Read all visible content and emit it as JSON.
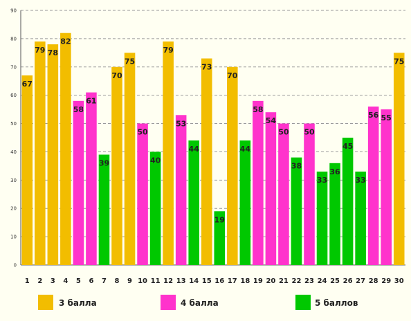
{
  "chart_data": {
    "type": "bar",
    "categories": [
      "1",
      "2",
      "3",
      "4",
      "5",
      "6",
      "7",
      "8",
      "9",
      "10",
      "11",
      "12",
      "13",
      "14",
      "15",
      "16",
      "17",
      "18",
      "19",
      "20",
      "21",
      "22",
      "23",
      "24",
      "25",
      "26",
      "27",
      "28",
      "29",
      "30"
    ],
    "values": [
      67,
      79,
      78,
      82,
      58,
      61,
      39,
      70,
      75,
      50,
      40,
      79,
      53,
      44,
      73,
      19,
      70,
      44,
      58,
      54,
      50,
      38,
      50,
      33,
      36,
      45,
      33,
      56,
      55,
      75
    ],
    "groups": [
      "3",
      "3",
      "3",
      "3",
      "4",
      "4",
      "5",
      "3",
      "3",
      "4",
      "5",
      "3",
      "4",
      "5",
      "3",
      "5",
      "3",
      "5",
      "4",
      "4",
      "4",
      "5",
      "4",
      "5",
      "5",
      "5",
      "5",
      "4",
      "4",
      "3"
    ],
    "ylim": [
      0,
      90
    ],
    "yticks": [
      0,
      10,
      20,
      30,
      40,
      50,
      60,
      70,
      80,
      90
    ],
    "grid": true,
    "legend_position": "bottom",
    "legend": [
      {
        "key": "3",
        "label": "3 балла",
        "color": "#f2bd00"
      },
      {
        "key": "4",
        "label": "4 балла",
        "color": "#ff33cc"
      },
      {
        "key": "5",
        "label": "5 баллов",
        "color": "#00c800"
      }
    ]
  }
}
